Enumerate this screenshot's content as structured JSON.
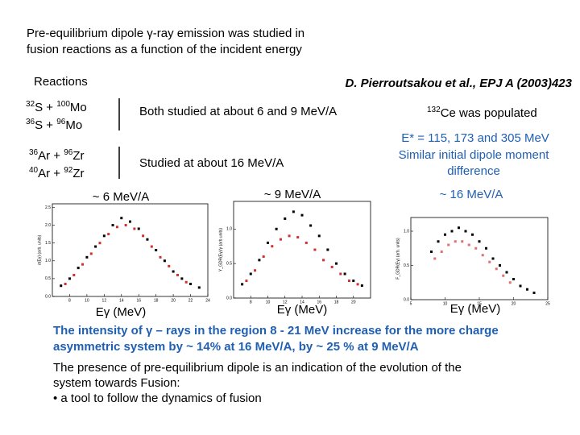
{
  "title": [
    "Pre-equilibrium  dipole γ-ray emission was studied in",
    "fusion reactions as a function of the incident energy"
  ],
  "reactions_heading": "Reactions",
  "citation": "D. Pierroutsakou et al., EPJ A (2003)423",
  "reactions": [
    [
      {
        "sup": "32",
        "text": "S + "
      },
      {
        "sup": "100",
        "text": "Mo"
      }
    ],
    [
      {
        "sup": "36",
        "text": "S + "
      },
      {
        "sup": "96",
        "text": "Mo"
      }
    ],
    [
      {
        "sup": "36",
        "text": "Ar + "
      },
      {
        "sup": "96",
        "text": "Zr"
      }
    ],
    [
      {
        "sup": "40",
        "text": "Ar + "
      },
      {
        "sup": "92",
        "text": "Zr"
      }
    ]
  ],
  "group_notes": [
    "Both studied at about 6 and 9 MeV/A",
    "Studied at about 16 MeV/A"
  ],
  "compound": [
    {
      "sup": "132",
      "text": "Ce was populated"
    }
  ],
  "right_notes": [
    "E* = 115, 173 and 305 MeV",
    "Similar initial dipole moment",
    "difference"
  ],
  "plots": [
    {
      "label": "~ 6 MeV/A",
      "xlabel": "Eγ (MeV)",
      "ylabel": "σ(Eγ) (arb. units)",
      "xlim": [
        6,
        24
      ],
      "ylim": [
        0,
        2.6
      ],
      "xticks": [
        8,
        10,
        12,
        14,
        16,
        18,
        20,
        22,
        24
      ],
      "yticks": [
        {
          "value": 0,
          "label": "0.0"
        },
        {
          "value": 0.5,
          "label": "0.5"
        },
        {
          "value": 1,
          "label": "1.0"
        },
        {
          "value": 1.5,
          "label": "1.5"
        },
        {
          "value": 2,
          "label": "2.0"
        },
        {
          "value": 2.5,
          "label": "2.5"
        }
      ],
      "series": [
        {
          "color": "#000000",
          "x": [
            7,
            8,
            9,
            10,
            11,
            12,
            13,
            14,
            15,
            16,
            17,
            18,
            19,
            20,
            21,
            22,
            23
          ],
          "values": [
            0.3,
            0.5,
            0.8,
            1.1,
            1.4,
            1.7,
            2.0,
            2.2,
            2.1,
            1.9,
            1.6,
            1.3,
            1.0,
            0.7,
            0.5,
            0.35,
            0.25
          ]
        },
        {
          "color": "#d03030",
          "x": [
            7.5,
            8.5,
            9.5,
            10.5,
            11.5,
            12.5,
            13.5,
            14.5,
            15.5,
            16.5,
            17.5,
            18.5,
            19.5,
            20.5,
            21.5
          ],
          "values": [
            0.35,
            0.6,
            0.9,
            1.2,
            1.5,
            1.75,
            1.95,
            2.0,
            1.9,
            1.7,
            1.4,
            1.1,
            0.85,
            0.6,
            0.4
          ]
        }
      ]
    },
    {
      "label": "~ 9 MeV/A",
      "xlabel": "Eγ (MeV)",
      "ylabel": "Y_GDR(Eγ)/γ (arb.units)",
      "xlim": [
        6,
        22
      ],
      "ylim": [
        0,
        1.4
      ],
      "xticks": [
        8,
        10,
        12,
        14,
        16,
        18,
        20
      ],
      "yticks": [
        {
          "value": 0,
          "label": "0.0"
        },
        {
          "value": 0.5,
          "label": "0.5"
        },
        {
          "value": 1,
          "label": "1.0"
        }
      ],
      "series": [
        {
          "color": "#000000",
          "x": [
            7,
            8,
            9,
            10,
            11,
            12,
            13,
            14,
            15,
            16,
            17,
            18,
            19,
            20,
            21
          ],
          "values": [
            0.2,
            0.35,
            0.55,
            0.8,
            1.0,
            1.15,
            1.25,
            1.2,
            1.05,
            0.9,
            0.7,
            0.5,
            0.35,
            0.25,
            0.18
          ]
        },
        {
          "color": "#d03030",
          "x": [
            7.5,
            8.5,
            9.5,
            10.5,
            11.5,
            12.5,
            13.5,
            14.5,
            15.5,
            16.5,
            17.5,
            18.5,
            19.5,
            20.5
          ],
          "values": [
            0.25,
            0.4,
            0.6,
            0.75,
            0.85,
            0.9,
            0.88,
            0.8,
            0.7,
            0.55,
            0.45,
            0.35,
            0.25,
            0.2
          ]
        }
      ]
    },
    {
      "label": "~ 16 MeV/A",
      "xlabel": "Eγ (MeV)",
      "ylabel": "F_GDR(Eγ) (arb. units)",
      "xlim": [
        5,
        25
      ],
      "ylim": [
        0,
        1.2
      ],
      "xticks": [
        5,
        10,
        15,
        20,
        25
      ],
      "yticks": [
        {
          "value": 0,
          "label": "0.0"
        },
        {
          "value": 0.5,
          "label": "0.5"
        },
        {
          "value": 1,
          "label": "1.0"
        }
      ],
      "series": [
        {
          "color": "#000000",
          "x": [
            8,
            9,
            10,
            11,
            12,
            13,
            14,
            15,
            16,
            17,
            18,
            19,
            20,
            21,
            22,
            23
          ],
          "values": [
            0.7,
            0.85,
            0.95,
            1.0,
            1.05,
            1.0,
            0.95,
            0.85,
            0.75,
            0.6,
            0.5,
            0.4,
            0.3,
            0.2,
            0.15,
            0.1
          ]
        },
        {
          "color": "#e07070",
          "x": [
            8.5,
            9.5,
            10.5,
            11.5,
            12.5,
            13.5,
            14.5,
            15.5,
            16.5,
            17.5,
            18.5,
            19.5
          ],
          "values": [
            0.6,
            0.7,
            0.8,
            0.85,
            0.85,
            0.8,
            0.75,
            0.65,
            0.55,
            0.45,
            0.35,
            0.25
          ]
        }
      ]
    }
  ],
  "conclusion": [
    "The intensity of γ – rays in the region 8 - 21 MeV increase  for the more charge",
    "asymmetric system by ~ 14% at 16 MeV/A, by ~ 25 % at 9 MeV/A"
  ],
  "summary": [
    "The presence of pre-equilibrium dipole is an indication of the evolution of the",
    "system towards Fusion:",
    "•  a tool to follow the dynamics of fusion"
  ]
}
